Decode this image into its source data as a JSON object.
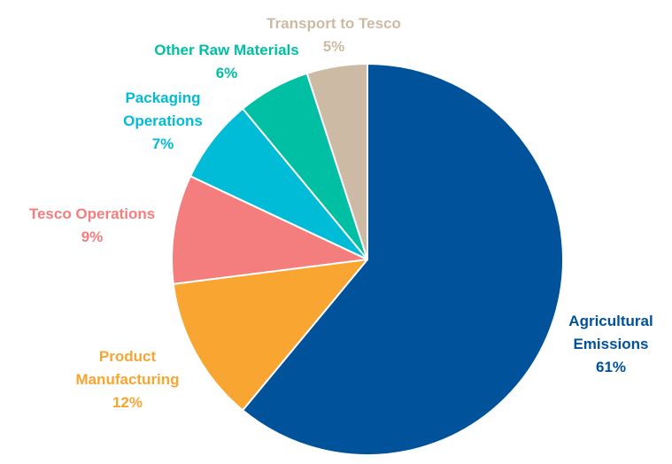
{
  "chart_data": {
    "type": "pie",
    "start": "12 o'clock",
    "direction": "clockwise",
    "slices": [
      {
        "label_lines": [
          "Agricultural",
          "Emissions"
        ],
        "pct_text": "61%",
        "value": 61,
        "color": "#00529B"
      },
      {
        "label_lines": [
          "Product",
          "Manufacturing"
        ],
        "pct_text": "12%",
        "value": 12,
        "color": "#F8A531"
      },
      {
        "label_lines": [
          "Tesco Operations"
        ],
        "pct_text": "9%",
        "value": 9,
        "color": "#F47E7E"
      },
      {
        "label_lines": [
          "Packaging",
          "Operations"
        ],
        "pct_text": "7%",
        "value": 7,
        "color": "#00BCD6"
      },
      {
        "label_lines": [
          "Other Raw Materials"
        ],
        "pct_text": "6%",
        "value": 6,
        "color": "#00BFA2"
      },
      {
        "label_lines": [
          "Transport to Tesco"
        ],
        "pct_text": "5%",
        "value": 5,
        "color": "#CDBAA4"
      }
    ]
  }
}
